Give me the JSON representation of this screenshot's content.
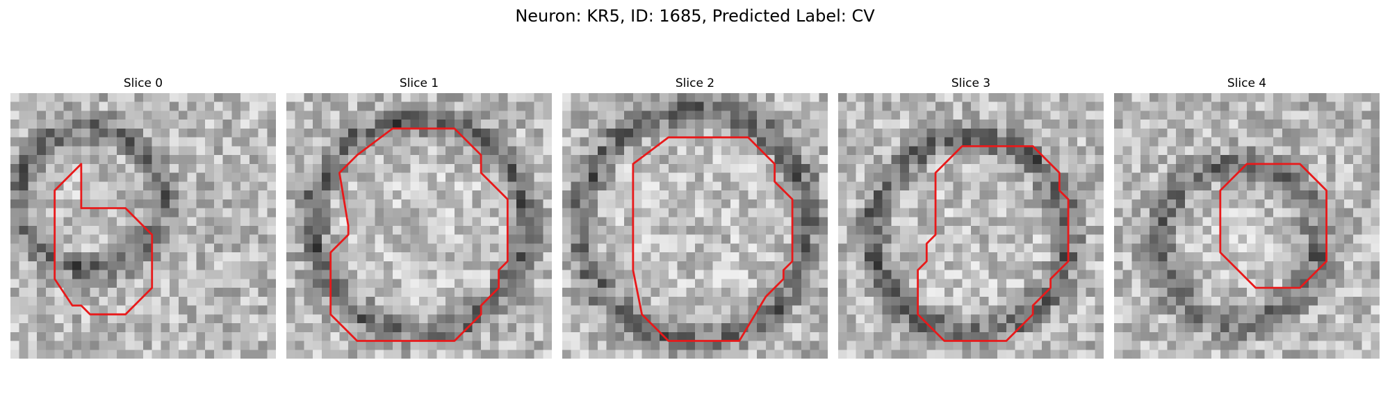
{
  "figure": {
    "title": "Neuron: KR5, ID: 1685, Predicted Label: CV"
  },
  "colors": {
    "contour": "#e8191a",
    "background": "#ffffff"
  },
  "slices": [
    {
      "label": "Slice 0",
      "ring_center": [
        9,
        12
      ],
      "ring_radius": 8,
      "contour": [
        [
          8,
          13
        ],
        [
          10,
          13
        ],
        [
          13,
          13
        ],
        [
          16,
          16
        ],
        [
          16,
          22
        ],
        [
          13,
          25
        ],
        [
          9,
          25
        ],
        [
          8,
          24
        ],
        [
          7,
          24
        ],
        [
          5,
          21
        ],
        [
          5,
          11
        ],
        [
          8,
          8
        ]
      ]
    },
    {
      "label": "Slice 1",
      "ring_center": [
        15,
        15
      ],
      "ring_radius": 12,
      "contour": [
        [
          8,
          7
        ],
        [
          12,
          4
        ],
        [
          19,
          4
        ],
        [
          22,
          7
        ],
        [
          22,
          9
        ],
        [
          25,
          12
        ],
        [
          25,
          19
        ],
        [
          24,
          20
        ],
        [
          24,
          22
        ],
        [
          23,
          23
        ],
        [
          22,
          24
        ],
        [
          22,
          25
        ],
        [
          20,
          27
        ],
        [
          19,
          28
        ],
        [
          8,
          28
        ],
        [
          5,
          25
        ],
        [
          5,
          18
        ],
        [
          6,
          17
        ],
        [
          7,
          16
        ],
        [
          7,
          15
        ],
        [
          6,
          9
        ]
      ]
    },
    {
      "label": "Slice 2",
      "ring_center": [
        15,
        15
      ],
      "ring_radius": 13,
      "contour": [
        [
          8,
          8
        ],
        [
          12,
          5
        ],
        [
          21,
          5
        ],
        [
          24,
          8
        ],
        [
          24,
          10
        ],
        [
          26,
          12
        ],
        [
          26,
          19
        ],
        [
          25,
          20
        ],
        [
          25,
          21
        ],
        [
          23,
          23
        ],
        [
          20,
          28
        ],
        [
          12,
          28
        ],
        [
          9,
          25
        ],
        [
          8,
          20
        ]
      ]
    },
    {
      "label": "Slice 3",
      "ring_center": [
        15,
        16
      ],
      "ring_radius": 11,
      "contour": [
        [
          11,
          9
        ],
        [
          14,
          6
        ],
        [
          22,
          6
        ],
        [
          25,
          9
        ],
        [
          25,
          11
        ],
        [
          26,
          12
        ],
        [
          26,
          19
        ],
        [
          24,
          21
        ],
        [
          24,
          22
        ],
        [
          23,
          23
        ],
        [
          22,
          24
        ],
        [
          22,
          25
        ],
        [
          19,
          28
        ],
        [
          12,
          28
        ],
        [
          9,
          25
        ],
        [
          9,
          20
        ],
        [
          10,
          19
        ],
        [
          10,
          17
        ],
        [
          11,
          16
        ],
        [
          11,
          15
        ]
      ]
    },
    {
      "label": "Slice 4",
      "ring_center": [
        14,
        17
      ],
      "ring_radius": 9,
      "contour": [
        [
          12,
          11
        ],
        [
          15,
          8
        ],
        [
          21,
          8
        ],
        [
          24,
          11
        ],
        [
          24,
          19
        ],
        [
          21,
          22
        ],
        [
          16,
          22
        ],
        [
          13,
          19
        ],
        [
          12,
          18
        ]
      ]
    }
  ]
}
